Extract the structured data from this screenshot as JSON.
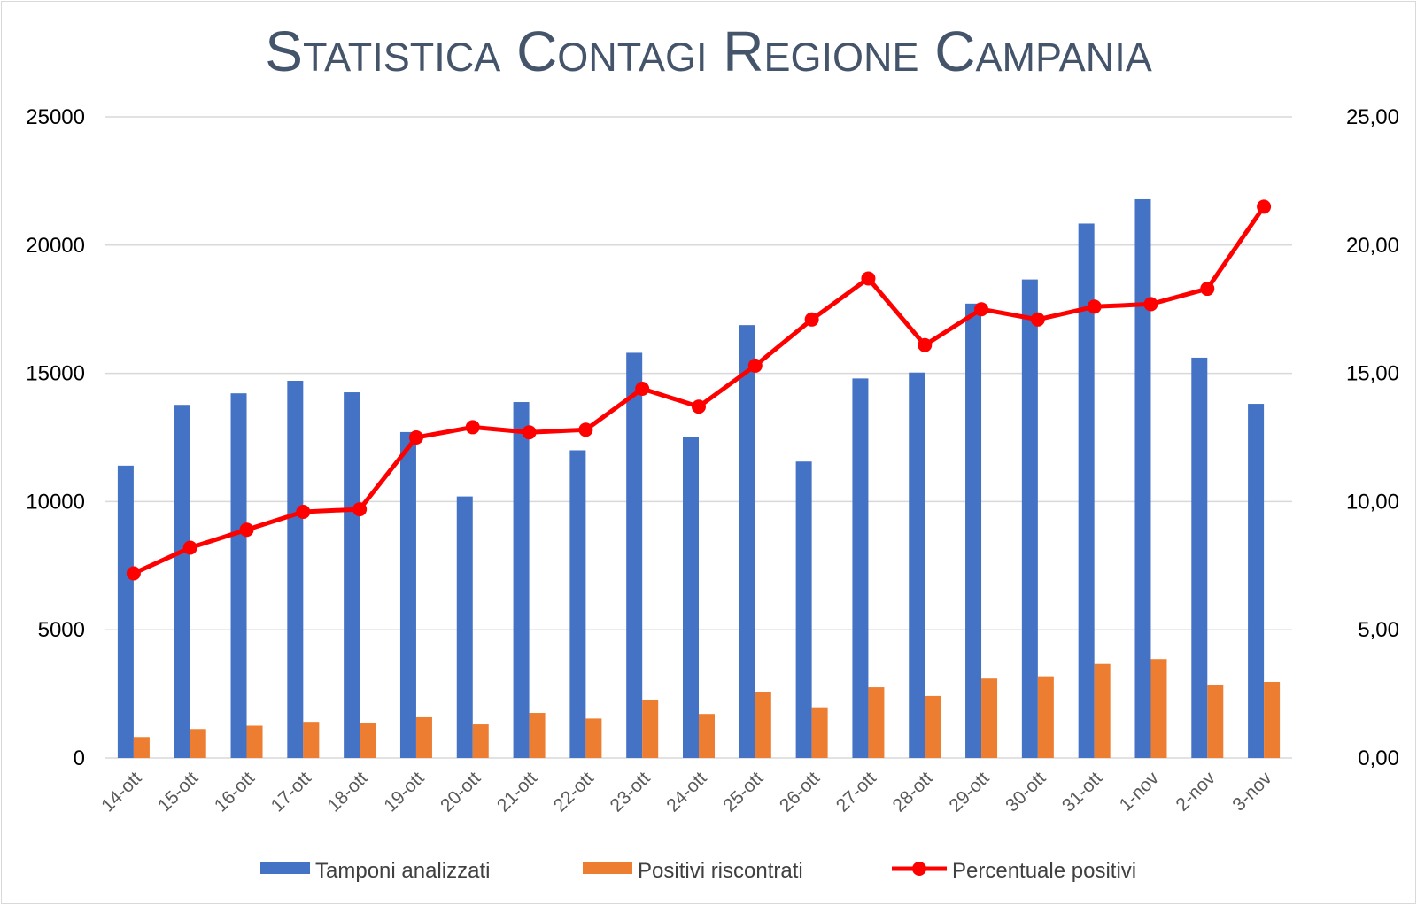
{
  "chart_data": {
    "type": "bar",
    "title": "Statistica Contagi Regione Campania",
    "categories": [
      "14-ott",
      "15-ott",
      "16-ott",
      "17-ott",
      "18-ott",
      "19-ott",
      "20-ott",
      "21-ott",
      "22-ott",
      "23-ott",
      "24-ott",
      "25-ott",
      "26-ott",
      "27-ott",
      "28-ott",
      "29-ott",
      "30-ott",
      "31-ott",
      "1-nov",
      "2-nov",
      "3-nov"
    ],
    "series": [
      {
        "name": "Tamponi analizzati",
        "type": "bar",
        "axis": "left",
        "color": "#4472c4",
        "values": [
          11400,
          13770,
          14220,
          14710,
          14260,
          12710,
          10200,
          13880,
          12000,
          15800,
          12520,
          16880,
          11560,
          14800,
          15030,
          17720,
          18660,
          20840,
          21790,
          15610,
          13810
        ]
      },
      {
        "name": "Positivi riscontrati",
        "type": "bar",
        "axis": "left",
        "color": "#ed7d31",
        "values": [
          820,
          1130,
          1260,
          1410,
          1380,
          1590,
          1310,
          1760,
          1540,
          2280,
          1720,
          2590,
          1980,
          2760,
          2420,
          3100,
          3190,
          3670,
          3860,
          2860,
          2970
        ]
      },
      {
        "name": "Percentuale positivi",
        "type": "line",
        "axis": "right",
        "color": "#ff0000",
        "values": [
          7.2,
          8.2,
          8.9,
          9.6,
          9.7,
          12.5,
          12.9,
          12.7,
          12.8,
          14.4,
          13.7,
          15.3,
          17.1,
          18.7,
          16.1,
          17.5,
          17.1,
          17.6,
          17.7,
          18.3,
          21.5
        ]
      }
    ],
    "yleft": {
      "ylim": [
        0,
        25000
      ],
      "ticks": [
        "0",
        "5000",
        "10000",
        "15000",
        "20000",
        "25000"
      ]
    },
    "yright": {
      "ylim": [
        0,
        25
      ],
      "ticks": [
        "0,00",
        "5,00",
        "10,00",
        "15,00",
        "20,00",
        "25,00"
      ]
    },
    "grid": true,
    "legend": "bottom"
  }
}
